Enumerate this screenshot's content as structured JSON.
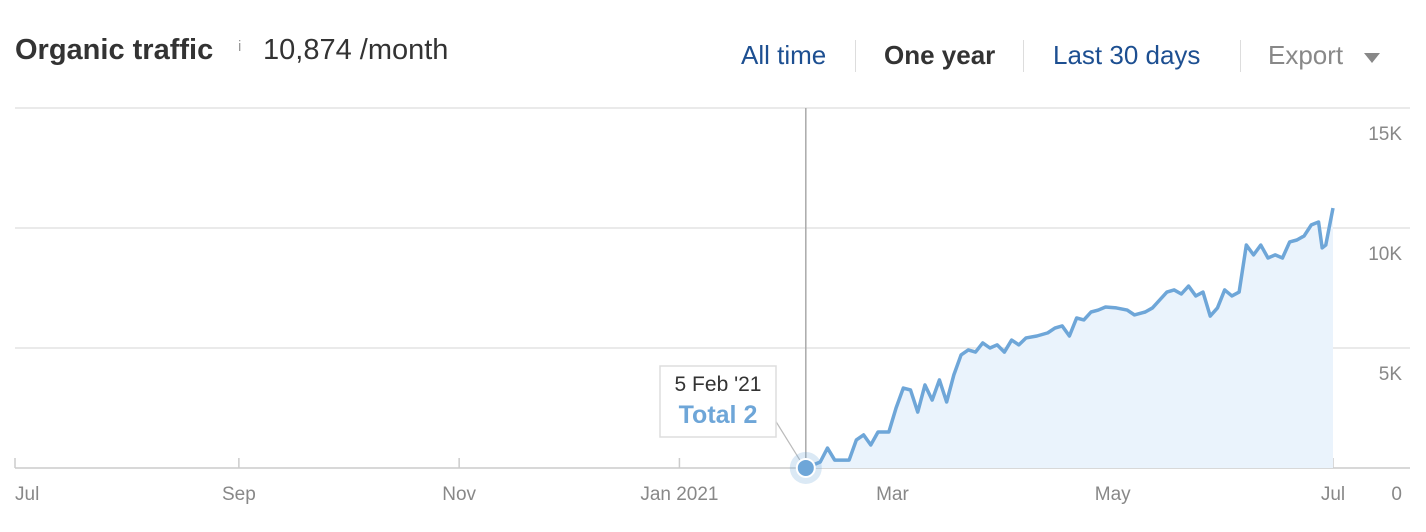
{
  "header": {
    "title": "Organic traffic",
    "info_icon": "i",
    "summary": "10,874 /month",
    "ranges": [
      "All time",
      "One year",
      "Last 30 days"
    ],
    "active_range": "One year",
    "export": "Export"
  },
  "chart_data": {
    "type": "area",
    "xlim": [
      "2020-07-01",
      "2021-07-01"
    ],
    "xticks": [
      {
        "value": "2020-07-01",
        "label": "Jul"
      },
      {
        "value": "2020-09-01",
        "label": "Sep"
      },
      {
        "value": "2020-11-01",
        "label": "Nov"
      },
      {
        "value": "2021-01-01",
        "label": "Jan 2021"
      },
      {
        "value": "2021-03-01",
        "label": "Mar"
      },
      {
        "value": "2021-05-01",
        "label": "May"
      },
      {
        "value": "2021-07-01",
        "label": "Jul"
      }
    ],
    "ylim": [
      0,
      15000
    ],
    "yticks": [
      0,
      {
        "value": 5000,
        "label": "5K"
      },
      {
        "value": 10000,
        "label": "10K"
      },
      {
        "value": 15000,
        "label": "15K"
      }
    ],
    "grid": true,
    "x": [
      "2021-02-05",
      "2021-02-09",
      "2021-02-11",
      "2021-02-13",
      "2021-02-17",
      "2021-02-19",
      "2021-02-21",
      "2021-02-23",
      "2021-02-25",
      "2021-02-28",
      "2021-03-02",
      "2021-03-04",
      "2021-03-06",
      "2021-03-08",
      "2021-03-10",
      "2021-03-12",
      "2021-03-14",
      "2021-03-16",
      "2021-03-18",
      "2021-03-20",
      "2021-03-22",
      "2021-03-24",
      "2021-03-26",
      "2021-03-28",
      "2021-03-30",
      "2021-04-01",
      "2021-04-03",
      "2021-04-05",
      "2021-04-07",
      "2021-04-10",
      "2021-04-13",
      "2021-04-15",
      "2021-04-17",
      "2021-04-19",
      "2021-04-21",
      "2021-04-23",
      "2021-04-25",
      "2021-04-27",
      "2021-04-29",
      "2021-05-02",
      "2021-05-05",
      "2021-05-07",
      "2021-05-10",
      "2021-05-12",
      "2021-05-14",
      "2021-05-16",
      "2021-05-18",
      "2021-05-20",
      "2021-05-22",
      "2021-05-24",
      "2021-05-26",
      "2021-05-28",
      "2021-05-30",
      "2021-06-01",
      "2021-06-03",
      "2021-06-05",
      "2021-06-07",
      "2021-06-09",
      "2021-06-11",
      "2021-06-13",
      "2021-06-15",
      "2021-06-17",
      "2021-06-19",
      "2021-06-21",
      "2021-06-23",
      "2021-06-25",
      "2021-06-27",
      "2021-06-28",
      "2021-06-29",
      "2021-07-01"
    ],
    "series": [
      {
        "name": "Total",
        "color": "#6ea6d8",
        "fill": "#eaf3fc",
        "values": [
          2,
          250,
          830,
          330,
          330,
          1170,
          1380,
          960,
          1500,
          1500,
          2500,
          3330,
          3250,
          2330,
          3460,
          2830,
          3670,
          2750,
          3880,
          4710,
          4920,
          4830,
          5210,
          5000,
          5130,
          4830,
          5330,
          5130,
          5420,
          5500,
          5630,
          5830,
          5920,
          5500,
          6250,
          6170,
          6500,
          6580,
          6710,
          6670,
          6580,
          6380,
          6500,
          6670,
          7000,
          7330,
          7420,
          7250,
          7580,
          7170,
          7330,
          6330,
          6670,
          7420,
          7170,
          7330,
          9290,
          8880,
          9290,
          8750,
          8880,
          8750,
          9420,
          9500,
          9670,
          10130,
          10250,
          9170,
          9290,
          10830
        ]
      }
    ],
    "tooltip": {
      "date": "5 Feb '21",
      "text": "Total 2",
      "index": 0
    }
  }
}
